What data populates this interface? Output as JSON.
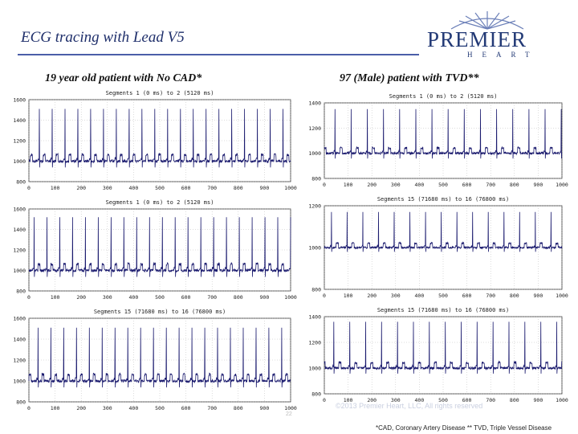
{
  "slide": {
    "title": "ECG tracing with Lead V5",
    "subtitle_left": "19 year old patient with No CAD*",
    "subtitle_right": "97 (Male) patient with TVD**",
    "footnote": "*CAD, Coronary Artery Disease  ** TVD, Triple Vessel Disease",
    "copyright": "©2013 Premier Heart, LLC, All rights reserved",
    "page_number": "22"
  },
  "logo": {
    "name": "PREMIER",
    "subtitle": "HEART"
  },
  "colors": {
    "title": "#1f2f6b",
    "trace": "#1a1a6e",
    "axis": "#333333",
    "grid": "#aaaaaa"
  },
  "chart_data": [
    {
      "type": "line",
      "title": "Segments 1 (0 ms) to 2 (5120 ms)",
      "ylim": [
        800,
        1600
      ],
      "yticks": [
        800,
        1000,
        1200,
        1400,
        1600
      ],
      "xlim": [
        0,
        1000
      ],
      "xticks": [
        0,
        100,
        200,
        300,
        400,
        500,
        600,
        700,
        800,
        900,
        1000
      ],
      "xtick_labels": [
        "0",
        "100",
        "200",
        "300",
        "400",
        "500",
        "600",
        "700",
        "800",
        "900",
        "1000"
      ],
      "baseline": 1000,
      "peak": 1510,
      "beat_interval": 49,
      "first_beat": 40
    },
    {
      "type": "line",
      "title": "Segments 1 (0 ms) to 2 (5120 ms)",
      "ylim": [
        800,
        1600
      ],
      "yticks": [
        800,
        1000,
        1200,
        1400,
        1600
      ],
      "xlim": [
        0,
        1000
      ],
      "xticks": [
        0,
        100,
        200,
        300,
        400,
        500,
        600,
        700,
        800,
        900,
        1000
      ],
      "xtick_labels": [
        "0",
        "100",
        "200",
        "300",
        "400",
        "500",
        "600",
        "700",
        "800",
        "900",
        "1000"
      ],
      "baseline": 1000,
      "peak": 1520,
      "beat_interval": 49,
      "first_beat": 20
    },
    {
      "type": "line",
      "title": "Segments 15 (71680 ms) to 16 (76800 ms)",
      "ylim": [
        800,
        1600
      ],
      "yticks": [
        800,
        1000,
        1200,
        1400,
        1600
      ],
      "xlim": [
        0,
        1000
      ],
      "xticks": [
        0,
        100,
        200,
        300,
        400,
        500,
        600,
        700,
        800,
        900,
        1000
      ],
      "xtick_labels": [
        "0",
        "100",
        "200",
        "300",
        "400",
        "500",
        "600",
        "700",
        "800",
        "900",
        "1000"
      ],
      "baseline": 1000,
      "peak": 1510,
      "beat_interval": 49,
      "first_beat": 35
    },
    {
      "type": "line",
      "title": "Segments 1 (0 ms) to 2 (5120 ms)",
      "ylim": [
        800,
        1400
      ],
      "yticks": [
        800,
        1000,
        1200,
        1400
      ],
      "xlim": [
        0,
        1000
      ],
      "xticks": [
        0,
        100,
        200,
        300,
        400,
        500,
        600,
        700,
        800,
        900,
        1000
      ],
      "xtick_labels": [
        "0",
        "100",
        "200",
        "300",
        "400",
        "500",
        "600",
        "700",
        "800",
        "900",
        "1000"
      ],
      "baseline": 1000,
      "peak": 1350,
      "beat_interval": 68,
      "first_beat": 45
    },
    {
      "type": "line",
      "title": "Segments 15 (71680 ms) to 16 (76800 ms)",
      "ylim": [
        800,
        1200
      ],
      "yticks": [
        800,
        1000,
        1200
      ],
      "xlim": [
        0,
        1000
      ],
      "xticks": [
        0,
        100,
        200,
        300,
        400,
        500,
        600,
        700,
        800,
        900,
        1000
      ],
      "xtick_labels": [
        "0",
        "100",
        "200",
        "300",
        "400",
        "500",
        "600",
        "700",
        "800",
        "900",
        "1000"
      ],
      "baseline": 1000,
      "peak": 1170,
      "beat_interval": 66,
      "first_beat": 30
    },
    {
      "type": "line",
      "title": "Segments 15 (71680 ms) to 16 (76800 ms)",
      "ylim": [
        800,
        1400
      ],
      "yticks": [
        800,
        1000,
        1200,
        1400
      ],
      "xlim": [
        0,
        1000
      ],
      "xticks": [
        0,
        100,
        200,
        300,
        400,
        500,
        600,
        700,
        800,
        900,
        1000
      ],
      "xtick_labels": [
        "0",
        "100",
        "200",
        "300",
        "400",
        "500",
        "600",
        "700",
        "800",
        "900",
        "1000"
      ],
      "baseline": 1000,
      "peak": 1360,
      "beat_interval": 67,
      "first_beat": 40
    }
  ]
}
